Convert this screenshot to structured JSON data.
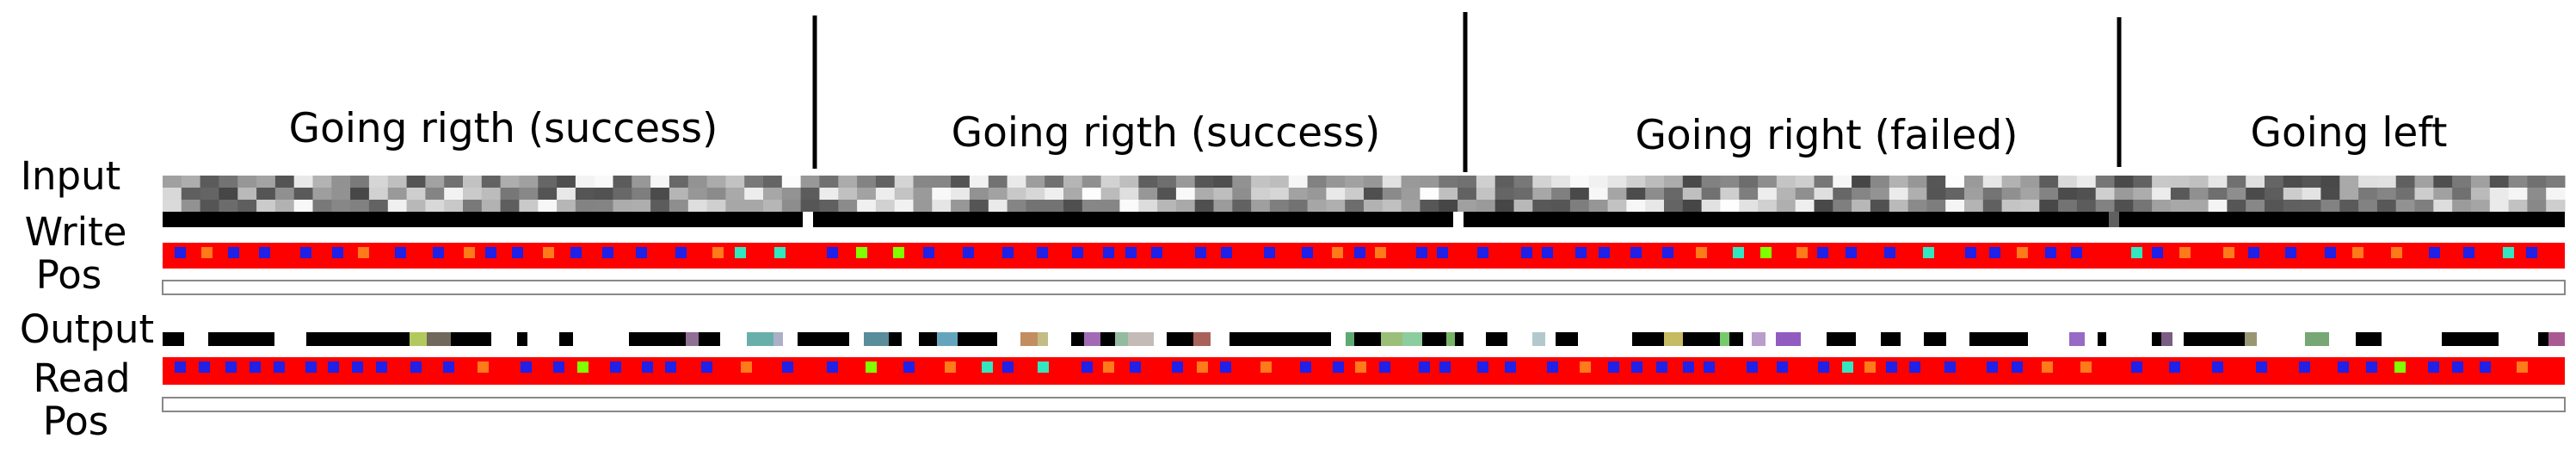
{
  "sections": [
    {
      "title": "Going rigth (success)"
    },
    {
      "title": "Going rigth (success)"
    },
    {
      "title": "Going right (failed)"
    },
    {
      "title": "Going left"
    }
  ],
  "labels": {
    "input": "Input",
    "write": "Write",
    "write_pos": "Pos",
    "output": "Output",
    "read": "Read",
    "read_pos": "Pos"
  },
  "colors": {
    "background": "#ffffff",
    "head_field": "#ff0000",
    "head_marker_blue": "#2020e6",
    "head_marker_orange": "#ff7a1a",
    "head_marker_green": "#80ff00",
    "head_marker_cyan": "#33e6c0",
    "separator": "#000000",
    "pos_bar_fill": "#ffffff",
    "pos_bar_border": "#888888"
  }
}
